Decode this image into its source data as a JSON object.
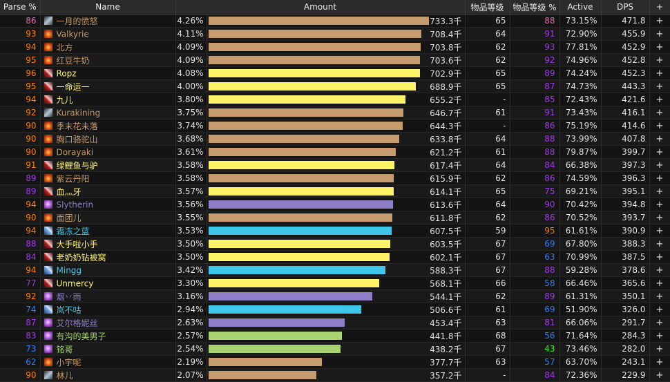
{
  "columns": {
    "parse": "Parse %",
    "name": "Name",
    "amount": "Amount",
    "ilvl": "物品等级",
    "ilvl_pct": "物品等级 %",
    "active": "Active",
    "dps": "DPS",
    "plus": "+"
  },
  "classes": {
    "mage": {
      "name_color": "#ff7d0a"
    },
    "warrior": {
      "name_color": "#c79c6e"
    },
    "rogue": {
      "name_color": "#fff569"
    },
    "warlock": {
      "name_color": "#9482c9"
    },
    "hunter": {
      "name_color": "#abd473"
    },
    "shaman": {
      "name_color": "#0070de"
    }
  },
  "quality_colors": {
    "orange": "#ff8000",
    "purple": "#a335ee",
    "blue": "#0070dd",
    "green": "#1eff00",
    "gray": "#9d9d9d",
    "pink": "#e268a8"
  },
  "bar_colors": {
    "brown": "#c69b6d",
    "yellow": "#fff468",
    "purple": "#8f7fc8",
    "lightblue": "#3fc7eb",
    "green": "#a9d271"
  },
  "rows": [
    {
      "parse": "86",
      "pq": "pink",
      "icon": "sword-icon",
      "iconcls": "sword",
      "name": "一月的愤怒",
      "nc": "#c69b6d",
      "pct": "4.26%",
      "bar": 0.995,
      "bc": "brown",
      "amount": "733.3千",
      "ilvl": "65",
      "ilvlp": "88",
      "iq": "pink",
      "active": "73.15%",
      "dps": "471.8",
      "plus": "+"
    },
    {
      "parse": "93",
      "pq": "orange",
      "icon": "fire-icon",
      "iconcls": "fire",
      "name": "Valkyrie",
      "nc": "#c69b6d",
      "pct": "4.11%",
      "bar": 0.96,
      "bc": "brown",
      "amount": "708.4千",
      "ilvl": "64",
      "ilvlp": "91",
      "iq": "purple",
      "active": "72.90%",
      "dps": "455.9",
      "plus": "+"
    },
    {
      "parse": "94",
      "pq": "orange",
      "icon": "fire-icon",
      "iconcls": "fire",
      "name": "北方",
      "nc": "#c69b6d",
      "pct": "4.09%",
      "bar": 0.955,
      "bc": "brown",
      "amount": "703.8千",
      "ilvl": "62",
      "ilvlp": "93",
      "iq": "purple",
      "active": "77.81%",
      "dps": "452.9",
      "plus": "+"
    },
    {
      "parse": "95",
      "pq": "orange",
      "icon": "fire-icon",
      "iconcls": "fire",
      "name": "红豆牛奶",
      "nc": "#c69b6d",
      "pct": "4.09%",
      "bar": 0.954,
      "bc": "brown",
      "amount": "703.6千",
      "ilvl": "62",
      "ilvlp": "92",
      "iq": "purple",
      "active": "74.96%",
      "dps": "452.8",
      "plus": "+"
    },
    {
      "parse": "96",
      "pq": "orange",
      "icon": "blade-icon",
      "iconcls": "blade",
      "name": "Ropz",
      "nc": "#fff468",
      "pct": "4.08%",
      "bar": 0.953,
      "bc": "yellow",
      "amount": "702.9千",
      "ilvl": "65",
      "ilvlp": "89",
      "iq": "purple",
      "active": "74.24%",
      "dps": "452.3",
      "plus": "+"
    },
    {
      "parse": "95",
      "pq": "orange",
      "icon": "blade-icon",
      "iconcls": "blade",
      "name": "一命运一",
      "nc": "#fff468",
      "pct": "4.00%",
      "bar": 0.935,
      "bc": "yellow",
      "amount": "688.9千",
      "ilvl": "65",
      "ilvlp": "87",
      "iq": "purple",
      "active": "74.73%",
      "dps": "443.3",
      "plus": "+"
    },
    {
      "parse": "94",
      "pq": "orange",
      "icon": "blade-icon",
      "iconcls": "blade",
      "name": "九儿",
      "nc": "#fff468",
      "pct": "3.80%",
      "bar": 0.888,
      "bc": "yellow",
      "amount": "655.2千",
      "ilvl": "-",
      "ilvlp": "85",
      "iq": "purple",
      "active": "72.43%",
      "dps": "421.6",
      "plus": "+"
    },
    {
      "parse": "92",
      "pq": "orange",
      "icon": "sword-icon",
      "iconcls": "sword",
      "name": "Kurakining",
      "nc": "#c69b6d",
      "pct": "3.75%",
      "bar": 0.877,
      "bc": "brown",
      "amount": "646.7千",
      "ilvl": "61",
      "ilvlp": "91",
      "iq": "purple",
      "active": "73.43%",
      "dps": "416.1",
      "plus": "+"
    },
    {
      "parse": "90",
      "pq": "orange",
      "icon": "fire-icon",
      "iconcls": "fire",
      "name": "季末花未落",
      "nc": "#c69b6d",
      "pct": "3.74%",
      "bar": 0.874,
      "bc": "brown",
      "amount": "644.3千",
      "ilvl": "-",
      "ilvlp": "86",
      "iq": "purple",
      "active": "75.19%",
      "dps": "414.6",
      "plus": "+"
    },
    {
      "parse": "90",
      "pq": "orange",
      "icon": "fire-icon",
      "iconcls": "fire",
      "name": "胸口骆驼山",
      "nc": "#c69b6d",
      "pct": "3.68%",
      "bar": 0.86,
      "bc": "brown",
      "amount": "633.8千",
      "ilvl": "64",
      "ilvlp": "88",
      "iq": "purple",
      "active": "73.99%",
      "dps": "407.8",
      "plus": "+"
    },
    {
      "parse": "90",
      "pq": "orange",
      "icon": "fire-icon",
      "iconcls": "fire",
      "name": "Dorayaki",
      "nc": "#c69b6d",
      "pct": "3.61%",
      "bar": 0.843,
      "bc": "brown",
      "amount": "621.2千",
      "ilvl": "61",
      "ilvlp": "88",
      "iq": "purple",
      "active": "79.87%",
      "dps": "399.7",
      "plus": "+"
    },
    {
      "parse": "91",
      "pq": "orange",
      "icon": "blade-icon",
      "iconcls": "blade",
      "name": "绿鲤鱼与驴",
      "nc": "#fff468",
      "pct": "3.58%",
      "bar": 0.838,
      "bc": "yellow",
      "amount": "617.4千",
      "ilvl": "64",
      "ilvlp": "84",
      "iq": "purple",
      "active": "66.38%",
      "dps": "397.3",
      "plus": "+"
    },
    {
      "parse": "89",
      "pq": "purple",
      "icon": "fire-icon",
      "iconcls": "fire",
      "name": "紫云丹阳",
      "nc": "#c69b6d",
      "pct": "3.58%",
      "bar": 0.836,
      "bc": "brown",
      "amount": "615.9千",
      "ilvl": "62",
      "ilvlp": "86",
      "iq": "purple",
      "active": "74.59%",
      "dps": "396.3",
      "plus": "+"
    },
    {
      "parse": "89",
      "pq": "purple",
      "icon": "blade-icon",
      "iconcls": "blade",
      "name": "血灬牙",
      "nc": "#fff468",
      "pct": "3.57%",
      "bar": 0.834,
      "bc": "yellow",
      "amount": "614.1千",
      "ilvl": "65",
      "ilvlp": "75",
      "iq": "purple",
      "active": "69.21%",
      "dps": "395.1",
      "plus": "+"
    },
    {
      "parse": "94",
      "pq": "orange",
      "icon": "arcane-icon",
      "iconcls": "arcane",
      "name": "Slytherin",
      "nc": "#8f7fc8",
      "pct": "3.56%",
      "bar": 0.833,
      "bc": "purple",
      "amount": "613.6千",
      "ilvl": "64",
      "ilvlp": "90",
      "iq": "purple",
      "active": "70.42%",
      "dps": "394.8",
      "plus": "+"
    },
    {
      "parse": "90",
      "pq": "orange",
      "icon": "fire-icon",
      "iconcls": "fire",
      "name": "面团儿",
      "nc": "#c69b6d",
      "pct": "3.55%",
      "bar": 0.83,
      "bc": "brown",
      "amount": "611.8千",
      "ilvl": "62",
      "ilvlp": "86",
      "iq": "purple",
      "active": "70.52%",
      "dps": "393.7",
      "plus": "+"
    },
    {
      "parse": "94",
      "pq": "orange",
      "icon": "ice-icon",
      "iconcls": "ice",
      "name": "霜冻之蓝",
      "nc": "#3fc7eb",
      "pct": "3.53%",
      "bar": 0.825,
      "bc": "lightblue",
      "amount": "607.5千",
      "ilvl": "59",
      "ilvlp": "95",
      "iq": "orange",
      "active": "61.61%",
      "dps": "390.9",
      "plus": "+"
    },
    {
      "parse": "88",
      "pq": "purple",
      "icon": "blade-icon",
      "iconcls": "blade",
      "name": "大手啦小手",
      "nc": "#fff468",
      "pct": "3.50%",
      "bar": 0.819,
      "bc": "yellow",
      "amount": "603.5千",
      "ilvl": "67",
      "ilvlp": "69",
      "iq": "blue",
      "active": "67.80%",
      "dps": "388.3",
      "plus": "+"
    },
    {
      "parse": "84",
      "pq": "purple",
      "icon": "blade-icon",
      "iconcls": "blade",
      "name": "老奶奶钻被窝",
      "nc": "#fff468",
      "pct": "3.50%",
      "bar": 0.817,
      "bc": "yellow",
      "amount": "602.1千",
      "ilvl": "67",
      "ilvlp": "63",
      "iq": "blue",
      "active": "70.99%",
      "dps": "387.5",
      "plus": "+"
    },
    {
      "parse": "94",
      "pq": "orange",
      "icon": "ice-icon",
      "iconcls": "ice",
      "name": "Mingg",
      "nc": "#3fc7eb",
      "pct": "3.42%",
      "bar": 0.798,
      "bc": "lightblue",
      "amount": "588.3千",
      "ilvl": "67",
      "ilvlp": "88",
      "iq": "purple",
      "active": "59.28%",
      "dps": "378.6",
      "plus": "+"
    },
    {
      "parse": "77",
      "pq": "purple",
      "icon": "blade-icon",
      "iconcls": "blade",
      "name": "Unmercy",
      "nc": "#fff468",
      "pct": "3.30%",
      "bar": 0.771,
      "bc": "yellow",
      "amount": "568.1千",
      "ilvl": "66",
      "ilvlp": "58",
      "iq": "blue",
      "active": "66.46%",
      "dps": "365.6",
      "plus": "+"
    },
    {
      "parse": "92",
      "pq": "orange",
      "icon": "arcane-icon",
      "iconcls": "arcane",
      "name": "烟丷雨",
      "nc": "#8f7fc8",
      "pct": "3.16%",
      "bar": 0.738,
      "bc": "purple",
      "amount": "544.1千",
      "ilvl": "62",
      "ilvlp": "89",
      "iq": "purple",
      "active": "61.31%",
      "dps": "350.1",
      "plus": "+"
    },
    {
      "parse": "74",
      "pq": "blue",
      "icon": "ice-icon",
      "iconcls": "ice",
      "name": "岚不咕",
      "nc": "#3fc7eb",
      "pct": "2.94%",
      "bar": 0.687,
      "bc": "lightblue",
      "amount": "506.6千",
      "ilvl": "61",
      "ilvlp": "69",
      "iq": "blue",
      "active": "51.90%",
      "dps": "326.0",
      "plus": "+"
    },
    {
      "parse": "87",
      "pq": "purple",
      "icon": "arcane-icon",
      "iconcls": "arcane",
      "name": "艾尔格妮丝",
      "nc": "#8f7fc8",
      "pct": "2.63%",
      "bar": 0.615,
      "bc": "purple",
      "amount": "453.4千",
      "ilvl": "63",
      "ilvlp": "81",
      "iq": "purple",
      "active": "66.06%",
      "dps": "291.7",
      "plus": "+"
    },
    {
      "parse": "83",
      "pq": "purple",
      "icon": "arcane-icon",
      "iconcls": "arcane",
      "name": "有沟的美男子",
      "nc": "#a9d271",
      "pct": "2.57%",
      "bar": 0.6,
      "bc": "green",
      "amount": "441.8千",
      "ilvl": "68",
      "ilvlp": "56",
      "iq": "blue",
      "active": "71.64%",
      "dps": "284.3",
      "plus": "+"
    },
    {
      "parse": "73",
      "pq": "blue",
      "icon": "arcane-icon",
      "iconcls": "arcane",
      "name": "铭哥",
      "nc": "#a9d271",
      "pct": "2.54%",
      "bar": 0.595,
      "bc": "green",
      "amount": "438.2千",
      "ilvl": "67",
      "ilvlp": "43",
      "iq": "green",
      "active": "73.46%",
      "dps": "282.0",
      "plus": "+"
    },
    {
      "parse": "62",
      "pq": "blue",
      "icon": "fire-icon",
      "iconcls": "fire",
      "name": "小宇呢",
      "nc": "#c69b6d",
      "pct": "2.19%",
      "bar": 0.512,
      "bc": "brown",
      "amount": "377.7千",
      "ilvl": "63",
      "ilvlp": "57",
      "iq": "blue",
      "active": "63.70%",
      "dps": "243.1",
      "plus": "+"
    },
    {
      "parse": "90",
      "pq": "orange",
      "icon": "sword-icon",
      "iconcls": "sword",
      "name": "林儿",
      "nc": "#c69b6d",
      "pct": "2.07%",
      "bar": 0.485,
      "bc": "brown",
      "amount": "357.2千",
      "ilvl": "-",
      "ilvlp": "84",
      "iq": "purple",
      "active": "72.36%",
      "dps": "229.9",
      "plus": "+"
    }
  ]
}
